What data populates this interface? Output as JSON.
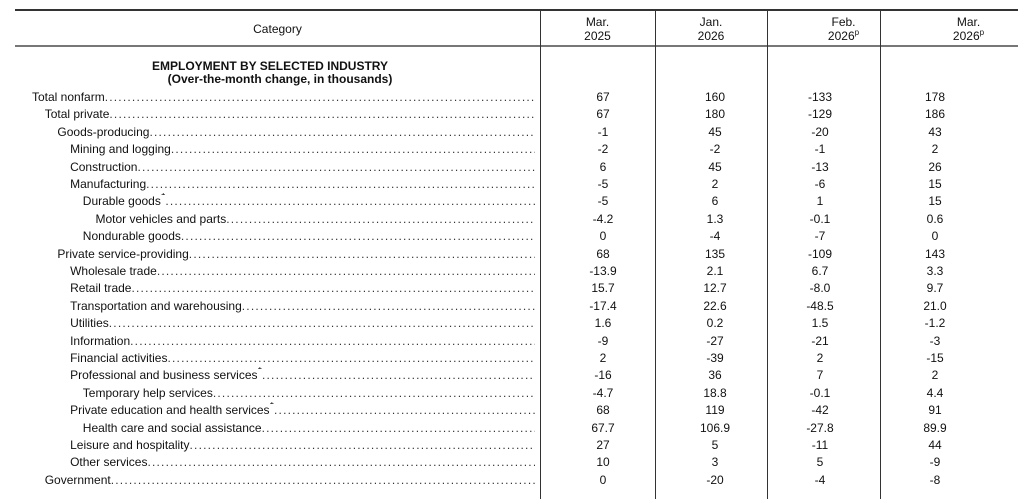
{
  "header": {
    "category": "Category",
    "columns": [
      [
        "Mar.",
        "2025",
        ""
      ],
      [
        "Jan.",
        "2026",
        ""
      ],
      [
        "Feb.",
        "2026",
        "p"
      ],
      [
        "Mar.",
        "2026",
        "p"
      ]
    ]
  },
  "section": {
    "title": "EMPLOYMENT BY SELECTED INDUSTRY",
    "subtitle": "(Over-the-month change, in thousands)"
  },
  "rows": [
    {
      "label": "Total nonfarm",
      "level": 0,
      "values": [
        "67",
        "160",
        "-133",
        "178"
      ]
    },
    {
      "label": "Total private",
      "level": 1,
      "values": [
        "67",
        "180",
        "-129",
        "186"
      ]
    },
    {
      "label": "Goods-producing",
      "level": 2,
      "values": [
        "-1",
        "45",
        "-20",
        "43"
      ]
    },
    {
      "label": "Mining and logging",
      "level": 3,
      "values": [
        "-2",
        "-2",
        "-1",
        "2"
      ]
    },
    {
      "label": "Construction",
      "level": 3,
      "values": [
        "6",
        "45",
        "-13",
        "26"
      ]
    },
    {
      "label": "Manufacturing",
      "level": 3,
      "values": [
        "-5",
        "2",
        "-6",
        "15"
      ]
    },
    {
      "label": "Durable goods",
      "sup": "1",
      "level": 4,
      "values": [
        "-5",
        "6",
        "1",
        "15"
      ]
    },
    {
      "label": "Motor vehicles and parts",
      "level": 5,
      "values": [
        "-4.2",
        "1.3",
        "-0.1",
        "0.6"
      ]
    },
    {
      "label": "Nondurable goods",
      "level": 4,
      "values": [
        "0",
        "-4",
        "-7",
        "0"
      ]
    },
    {
      "label": "Private service-providing",
      "level": 2,
      "values": [
        "68",
        "135",
        "-109",
        "143"
      ]
    },
    {
      "label": "Wholesale trade",
      "level": 3,
      "values": [
        "-13.9",
        "2.1",
        "6.7",
        "3.3"
      ]
    },
    {
      "label": "Retail trade",
      "level": 3,
      "values": [
        "15.7",
        "12.7",
        "-8.0",
        "9.7"
      ]
    },
    {
      "label": "Transportation and warehousing",
      "level": 3,
      "values": [
        "-17.4",
        "22.6",
        "-48.5",
        "21.0"
      ]
    },
    {
      "label": "Utilities",
      "level": 3,
      "values": [
        "1.6",
        "0.2",
        "1.5",
        "-1.2"
      ]
    },
    {
      "label": "Information",
      "level": 3,
      "values": [
        "-9",
        "-27",
        "-21",
        "-3"
      ]
    },
    {
      "label": "Financial activities",
      "level": 3,
      "values": [
        "2",
        "-39",
        "2",
        "-15"
      ]
    },
    {
      "label": "Professional and business services",
      "sup": "1",
      "level": 3,
      "values": [
        "-16",
        "36",
        "7",
        "2"
      ]
    },
    {
      "label": "Temporary help services",
      "level": 4,
      "values": [
        "-4.7",
        "18.8",
        "-0.1",
        "4.4"
      ]
    },
    {
      "label": "Private education and health services",
      "sup": "1",
      "level": 3,
      "values": [
        "68",
        "119",
        "-42",
        "91"
      ]
    },
    {
      "label": "Health care and social assistance",
      "level": 4,
      "values": [
        "67.7",
        "106.9",
        "-27.8",
        "89.9"
      ]
    },
    {
      "label": "Leisure and hospitality",
      "level": 3,
      "values": [
        "27",
        "5",
        "-11",
        "44"
      ]
    },
    {
      "label": "Other services",
      "level": 3,
      "values": [
        "10",
        "3",
        "5",
        "-9"
      ]
    },
    {
      "label": "Government",
      "level": 1,
      "values": [
        "0",
        "-20",
        "-4",
        "-8"
      ]
    }
  ]
}
